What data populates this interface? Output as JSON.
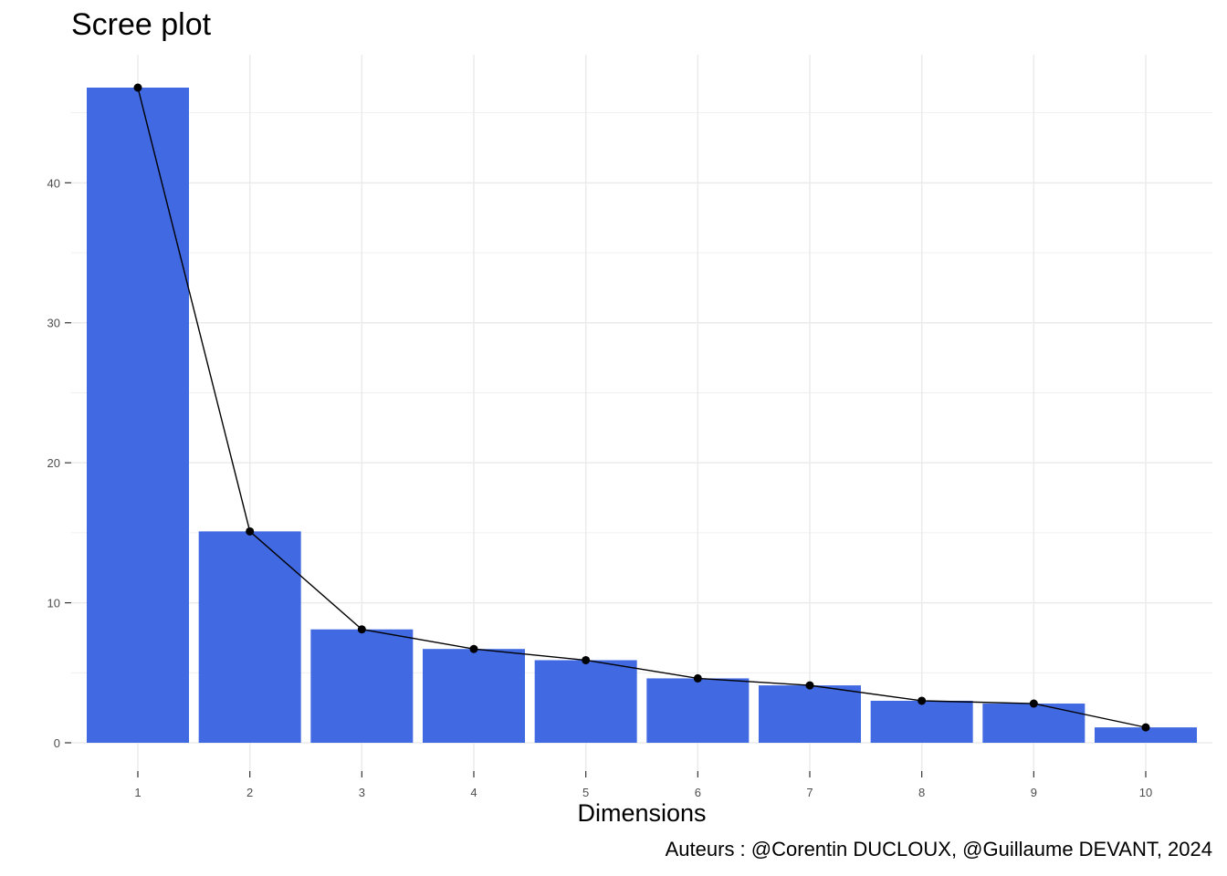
{
  "chart_data": {
    "type": "bar",
    "title": "Scree plot",
    "xlabel": "Dimensions",
    "ylabel": "",
    "caption": "Auteurs : @Corentin DUCLOUX, @Guillaume DEVANT, 2024",
    "categories": [
      "1",
      "2",
      "3",
      "4",
      "5",
      "6",
      "7",
      "8",
      "9",
      "10"
    ],
    "values": [
      46.8,
      15.1,
      8.1,
      6.7,
      5.9,
      4.6,
      4.1,
      3.0,
      2.8,
      1.1
    ],
    "ylim": [
      0,
      48.8
    ],
    "yticks": [
      0,
      10,
      20,
      30,
      40
    ],
    "ytick_labels": [
      "0",
      "10",
      "20",
      "30",
      "40"
    ],
    "grid": true,
    "overlay_line": true,
    "colors": {
      "bar": "#4169e1",
      "line": "#000000",
      "grid": "#ebebeb",
      "axis_text": "#4d4d4d"
    }
  }
}
